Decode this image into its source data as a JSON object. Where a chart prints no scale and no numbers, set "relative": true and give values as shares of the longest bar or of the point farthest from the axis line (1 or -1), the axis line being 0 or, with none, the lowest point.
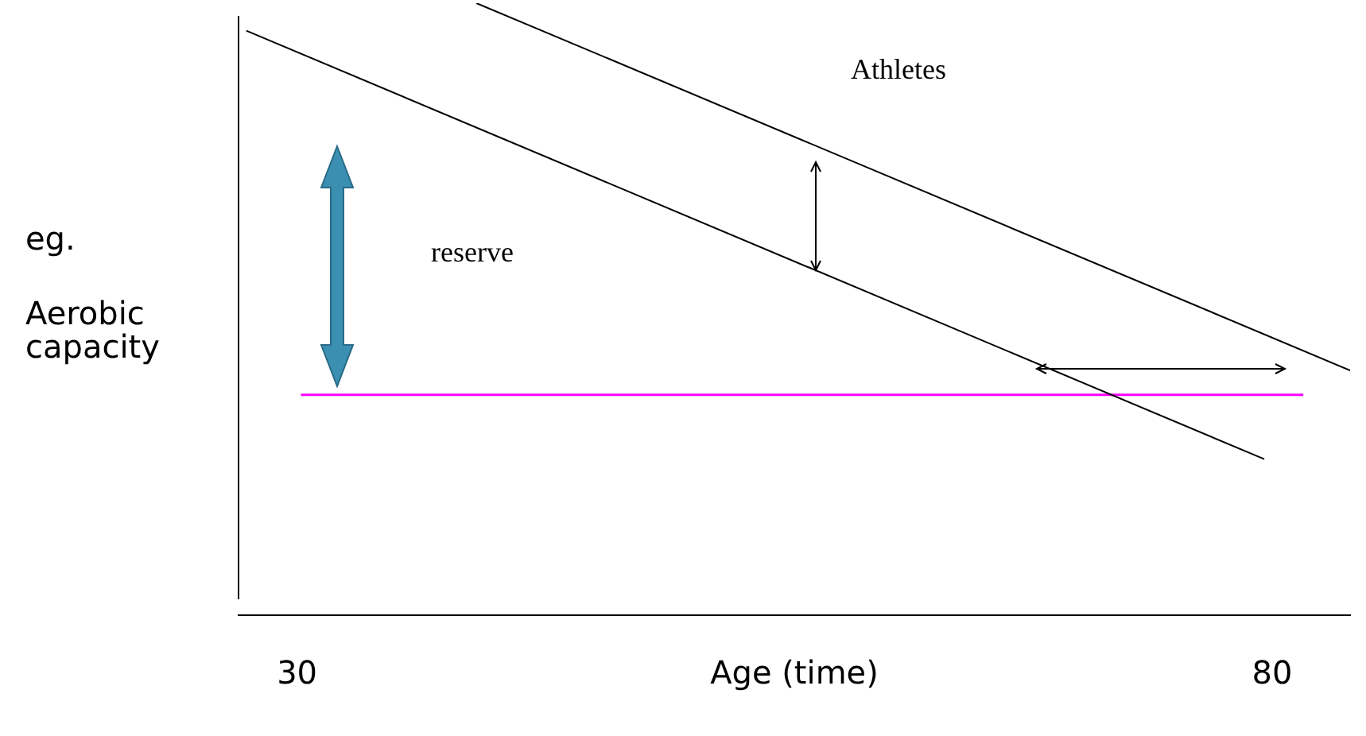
{
  "chart_data": {
    "type": "line",
    "relative": true,
    "xlabel": "Age (time)",
    "ylabel": "eg. Aerobic capacity",
    "xlim": [
      27,
      84
    ],
    "xticks": [
      30,
      80
    ],
    "grid": false,
    "legend": false,
    "marker": "none",
    "line_style": "solid",
    "series": [
      {
        "color": "#000000",
        "x": [
          27.4,
          79.6
        ],
        "values": [
          0.955,
          0.255
        ]
      },
      {
        "color": "#000000",
        "x": [
          39.2,
          84
        ],
        "values": [
          1,
          0.4
        ]
      },
      {
        "color": "#ff00ff",
        "x": [
          30.2,
          81.6
        ],
        "values": [
          0.36,
          0.36
        ]
      }
    ],
    "annotations": [
      "Athletes",
      "reserve"
    ]
  }
}
